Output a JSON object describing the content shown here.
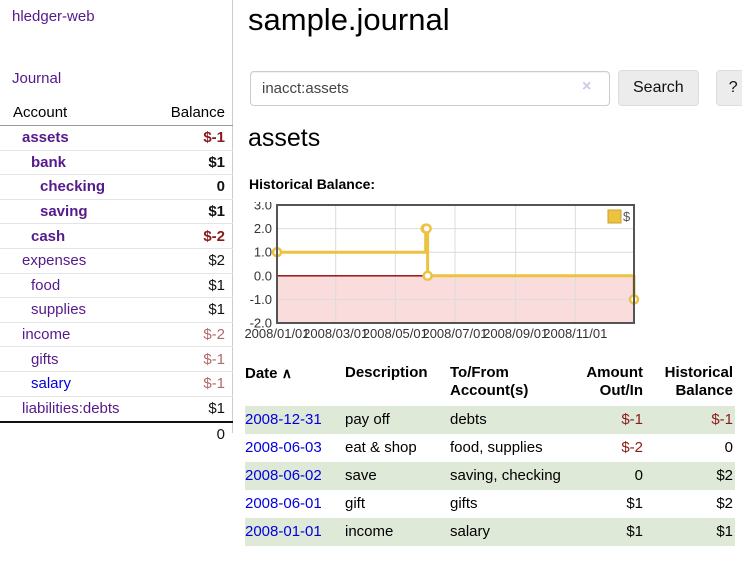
{
  "app": {
    "title": "hledger-web"
  },
  "colors": {
    "link_purple": "#551a8b",
    "link_blue": "#0000dd",
    "negative_strong": "#8b1a1a",
    "negative_soft": "#b36a6a",
    "row_green": "#dee9d8",
    "chart_series_yellow": "#edc240",
    "chart_negative_fill": "#fadcdc",
    "chart_zero_line": "#8b0000"
  },
  "sidebar": {
    "journal_label": "Journal",
    "account_header": "Account",
    "balance_header": "Balance",
    "accounts": [
      {
        "name": "assets",
        "balance": "$-1",
        "level": 1,
        "bold": true,
        "name_color": "purple",
        "balance_tone": "neg-strong"
      },
      {
        "name": "bank",
        "balance": "$1",
        "level": 2,
        "bold": true,
        "name_color": "purple",
        "balance_tone": "black"
      },
      {
        "name": "checking",
        "balance": "0",
        "level": 3,
        "bold": true,
        "name_color": "purple",
        "balance_tone": "black"
      },
      {
        "name": "saving",
        "balance": "$1",
        "level": 3,
        "bold": true,
        "name_color": "purple",
        "balance_tone": "black"
      },
      {
        "name": "cash",
        "balance": "$-2",
        "level": 2,
        "bold": true,
        "name_color": "purple",
        "balance_tone": "neg-strong"
      },
      {
        "name": "expenses",
        "balance": "$2",
        "level": 1,
        "bold": false,
        "name_color": "purple",
        "balance_tone": "black"
      },
      {
        "name": "food",
        "balance": "$1",
        "level": 2,
        "bold": false,
        "name_color": "purple",
        "balance_tone": "black"
      },
      {
        "name": "supplies",
        "balance": "$1",
        "level": 2,
        "bold": false,
        "name_color": "purple",
        "balance_tone": "black"
      },
      {
        "name": "income",
        "balance": "$-2",
        "level": 1,
        "bold": false,
        "name_color": "purple",
        "balance_tone": "neg-soft"
      },
      {
        "name": "gifts",
        "balance": "$-1",
        "level": 2,
        "bold": false,
        "name_color": "purple",
        "balance_tone": "neg-soft"
      },
      {
        "name": "salary",
        "balance": "$-1",
        "level": 2,
        "bold": false,
        "name_color": "blue",
        "balance_tone": "neg-soft"
      },
      {
        "name": "liabilities:debts",
        "balance": "$1",
        "level": 1,
        "bold": false,
        "name_color": "purple",
        "balance_tone": "black"
      }
    ],
    "total": "0"
  },
  "header": {
    "title": "sample.journal"
  },
  "search": {
    "value": "inacct:assets",
    "clear_icon": "×",
    "search_button": "Search",
    "help_button": "?"
  },
  "account_page": {
    "heading": "assets",
    "section_label": "Historical Balance:"
  },
  "chart_data": {
    "type": "line",
    "title": "Historical Balance:",
    "steps": true,
    "series": [
      {
        "name": "$",
        "color": "#edc240",
        "points": [
          [
            "2008-01-01",
            1
          ],
          [
            "2008-06-01",
            2
          ],
          [
            "2008-06-02",
            2
          ],
          [
            "2008-06-03",
            0
          ],
          [
            "2008-12-31",
            -1
          ]
        ]
      }
    ],
    "x_ticks": [
      "2008/01/01",
      "2008/03/01",
      "2008/05/01",
      "2008/07/01",
      "2008/09/01",
      "2008/11/01"
    ],
    "y_ticks": [
      "3.0",
      "2.0",
      "1.0",
      "0.0",
      "-1.0",
      "-2.0"
    ],
    "ylim": [
      -2,
      3
    ],
    "x_range": [
      "2008-01-01",
      "2008-12-31"
    ],
    "grid": true,
    "legend": {
      "label": "$",
      "position": "top-right"
    }
  },
  "register": {
    "columns": [
      "Date",
      "Description",
      "To/From Account(s)",
      "Amount Out/In",
      "Historical Balance"
    ],
    "sort_arrow": "∧",
    "rows": [
      {
        "date": "2008-12-31",
        "description": "pay off",
        "accounts": "debts",
        "amount": "$-1",
        "balance": "$-1",
        "amount_negative": true,
        "balance_negative": true,
        "shaded": true
      },
      {
        "date": "2008-06-03",
        "description": "eat & shop",
        "accounts": "food, supplies",
        "amount": "$-2",
        "balance": "0",
        "amount_negative": true,
        "balance_negative": false,
        "shaded": false
      },
      {
        "date": "2008-06-02",
        "description": "save",
        "accounts": "saving, checking",
        "amount": "0",
        "balance": "$2",
        "amount_negative": false,
        "balance_negative": false,
        "shaded": true
      },
      {
        "date": "2008-06-01",
        "description": "gift",
        "accounts": "gifts",
        "amount": "$1",
        "balance": "$2",
        "amount_negative": false,
        "balance_negative": false,
        "shaded": false
      },
      {
        "date": "2008-01-01",
        "description": "income",
        "accounts": "salary",
        "amount": "$1",
        "balance": "$1",
        "amount_negative": false,
        "balance_negative": false,
        "shaded": true
      }
    ]
  }
}
